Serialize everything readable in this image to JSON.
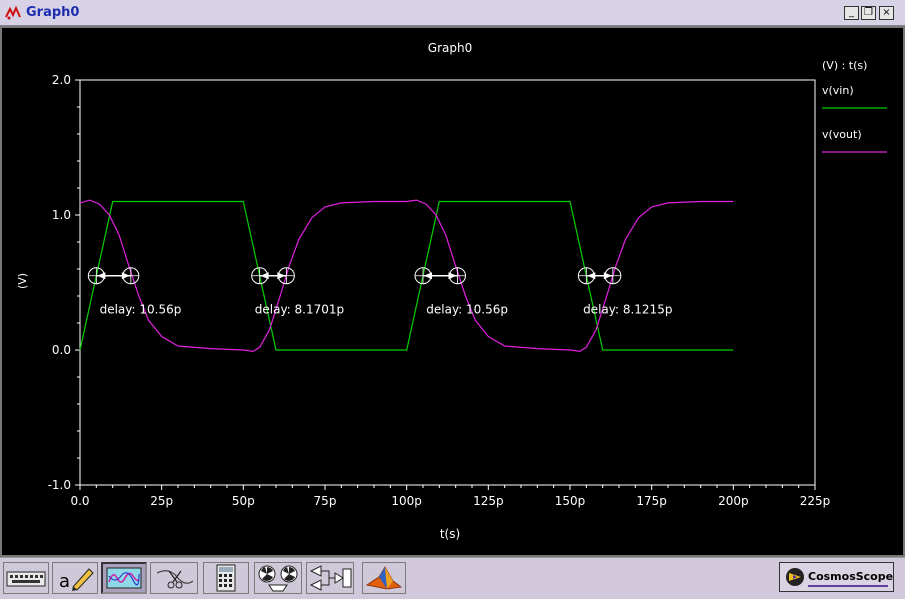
{
  "window": {
    "title": "Graph0",
    "minimize_glyph": "_",
    "restore_glyph": "❐",
    "close_glyph": "×"
  },
  "toolbar": {
    "buttons": [
      {
        "name": "keyboard-icon"
      },
      {
        "name": "annotate-pencil-icon"
      },
      {
        "name": "waveform-display-icon"
      },
      {
        "name": "scissors-icon"
      },
      {
        "name": "calculator-icon"
      },
      {
        "name": "radiation-icon"
      },
      {
        "name": "measurement-icon"
      },
      {
        "name": "matlab-icon"
      }
    ],
    "logo_text": "CosmosScope"
  },
  "colors": {
    "background": "#000000",
    "axes": "#ffffff",
    "vin": "#00d000",
    "vout": "#e020e0"
  },
  "chart_data": {
    "type": "line",
    "title": "Graph0",
    "unit_label": "(V) : t(s)",
    "xlabel": "t(s)",
    "ylabel": "(V)",
    "xlim": [
      0,
      225
    ],
    "ylim": [
      -1.0,
      2.0
    ],
    "xticks": [
      0,
      25,
      50,
      75,
      100,
      125,
      150,
      175,
      200,
      225
    ],
    "xtick_labels": [
      "0.0",
      "25p",
      "50p",
      "75p",
      "100p",
      "125p",
      "150p",
      "175p",
      "200p",
      "225p"
    ],
    "yticks": [
      -1.0,
      0.0,
      1.0,
      2.0
    ],
    "ytick_labels": [
      "-1.0",
      "0.0",
      "1.0",
      "2.0"
    ],
    "grid": false,
    "legend_position": "right",
    "series": [
      {
        "name": "v(vin)",
        "color": "#00d000",
        "points": [
          [
            0,
            0
          ],
          [
            10,
            1.1
          ],
          [
            50,
            1.1
          ],
          [
            60,
            0
          ],
          [
            100,
            0
          ],
          [
            110,
            1.1
          ],
          [
            150,
            1.1
          ],
          [
            160,
            0
          ],
          [
            200,
            0
          ]
        ]
      },
      {
        "name": "v(vout)",
        "color": "#e020e0",
        "points": [
          [
            0,
            1.09
          ],
          [
            3,
            1.11
          ],
          [
            6,
            1.08
          ],
          [
            9,
            1.0
          ],
          [
            12,
            0.85
          ],
          [
            15,
            0.62
          ],
          [
            18,
            0.4
          ],
          [
            21,
            0.22
          ],
          [
            25,
            0.1
          ],
          [
            30,
            0.03
          ],
          [
            40,
            0.01
          ],
          [
            50,
            0.0
          ],
          [
            53,
            -0.01
          ],
          [
            55,
            0.02
          ],
          [
            58,
            0.15
          ],
          [
            61,
            0.38
          ],
          [
            64,
            0.62
          ],
          [
            67,
            0.82
          ],
          [
            71,
            0.98
          ],
          [
            75,
            1.06
          ],
          [
            80,
            1.09
          ],
          [
            90,
            1.1
          ],
          [
            100,
            1.1
          ],
          [
            103,
            1.11
          ],
          [
            106,
            1.08
          ],
          [
            109,
            1.0
          ],
          [
            112,
            0.85
          ],
          [
            115,
            0.62
          ],
          [
            118,
            0.4
          ],
          [
            121,
            0.22
          ],
          [
            125,
            0.1
          ],
          [
            130,
            0.03
          ],
          [
            140,
            0.01
          ],
          [
            150,
            0.0
          ],
          [
            153,
            -0.01
          ],
          [
            155,
            0.02
          ],
          [
            158,
            0.15
          ],
          [
            161,
            0.38
          ],
          [
            164,
            0.62
          ],
          [
            167,
            0.82
          ],
          [
            171,
            0.98
          ],
          [
            175,
            1.06
          ],
          [
            180,
            1.09
          ],
          [
            190,
            1.1
          ],
          [
            200,
            1.1
          ]
        ]
      }
    ],
    "annotations": [
      {
        "label": "delay: 10.56p",
        "x1": 5,
        "x2": 15.56,
        "y": 0.55,
        "label_x": 6,
        "label_y": 0.27
      },
      {
        "label": "delay: 8.1701p",
        "x1": 55,
        "x2": 63.17,
        "y": 0.55,
        "label_x": 53.5,
        "label_y": 0.27
      },
      {
        "label": "delay: 10.56p",
        "x1": 105,
        "x2": 115.56,
        "y": 0.55,
        "label_x": 106,
        "label_y": 0.27
      },
      {
        "label": "delay: 8.1215p",
        "x1": 155,
        "x2": 163.12,
        "y": 0.55,
        "label_x": 154,
        "label_y": 0.27
      }
    ]
  }
}
